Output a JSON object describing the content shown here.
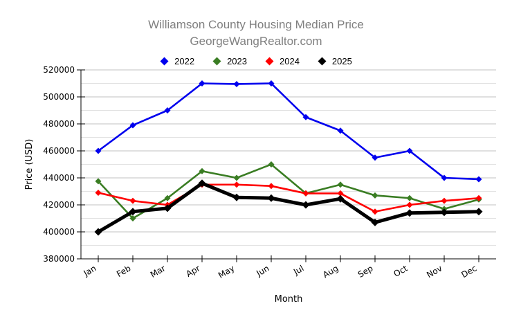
{
  "chart_data": {
    "type": "line",
    "title": "Williamson County Housing Median Price",
    "subtitle": "GeorgeWangRealtor.com",
    "xlabel": "Month",
    "ylabel": "Price (USD)",
    "ylim": [
      380000,
      520000
    ],
    "ytick_step": 20000,
    "minor_ytick_step": 10000,
    "grid": true,
    "legend_position": "top-center",
    "categories": [
      "Jan",
      "Feb",
      "Mar",
      "Apr",
      "May",
      "Jun",
      "Jul",
      "Aug",
      "Sep",
      "Oct",
      "Nov",
      "Dec"
    ],
    "series": [
      {
        "name": "2022",
        "color": "#0000ee",
        "line_width": 2.6,
        "marker": "diamond",
        "marker_size": 4.5,
        "values": [
          460000,
          479000,
          490000,
          510000,
          509500,
          510000,
          485000,
          475000,
          455000,
          460000,
          440000,
          439000
        ]
      },
      {
        "name": "2023",
        "color": "#3a7d23",
        "line_width": 2.6,
        "marker": "diamond",
        "marker_size": 4.5,
        "values": [
          437500,
          410000,
          425000,
          445000,
          440000,
          450000,
          428500,
          435000,
          427000,
          425000,
          417000,
          424000
        ]
      },
      {
        "name": "2024",
        "color": "#ff0000",
        "line_width": 2.6,
        "marker": "diamond",
        "marker_size": 4.5,
        "values": [
          429000,
          423000,
          420000,
          435000,
          435000,
          434000,
          428500,
          428500,
          415000,
          420000,
          423000,
          425000
        ]
      },
      {
        "name": "2025",
        "color": "#000000",
        "line_width": 5,
        "marker": "diamond",
        "marker_size": 5.5,
        "values": [
          400000,
          415000,
          417500,
          436000,
          425500,
          425000,
          420000,
          424500,
          407000,
          414000,
          414500,
          415000
        ]
      }
    ]
  },
  "colors": {
    "background": "#ffffff",
    "title_text": "#808080",
    "axis": "#000000",
    "tick_text": "#000000",
    "grid_major": "#c0c0c0",
    "grid_minor": "#e2e2e2"
  }
}
